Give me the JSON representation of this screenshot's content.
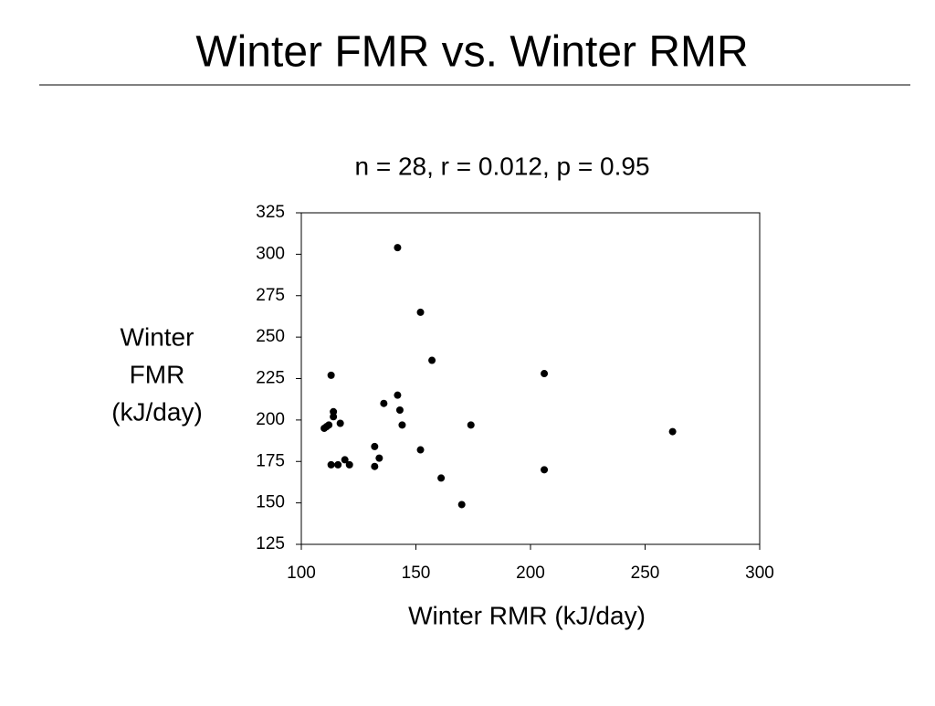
{
  "title": "Winter FMR vs. Winter RMR",
  "chart_data": {
    "type": "scatter",
    "title": "n = 28, r = 0.012, p = 0.95",
    "xlabel": "Winter RMR (kJ/day)",
    "ylabel": [
      "Winter",
      "FMR",
      "(kJ/day)"
    ],
    "x": [
      142,
      152,
      157,
      206,
      113,
      142,
      136,
      143,
      114,
      114,
      117,
      110,
      111,
      112,
      144,
      174,
      262,
      132,
      152,
      119,
      134,
      113,
      116,
      121,
      132,
      206,
      161,
      170
    ],
    "y": [
      304,
      265,
      236,
      228,
      227,
      215,
      210,
      206,
      205,
      202,
      198,
      195,
      196,
      197,
      197,
      197,
      193,
      184,
      182,
      176,
      177,
      173,
      173,
      173,
      172,
      170,
      165,
      149
    ],
    "color": "#000000",
    "xlim": [
      100,
      300
    ],
    "xticks": [
      100,
      150,
      200,
      250,
      300
    ],
    "ylim": [
      125,
      325
    ],
    "yticks": [
      125,
      150,
      175,
      200,
      225,
      250,
      275,
      300,
      325
    ]
  }
}
